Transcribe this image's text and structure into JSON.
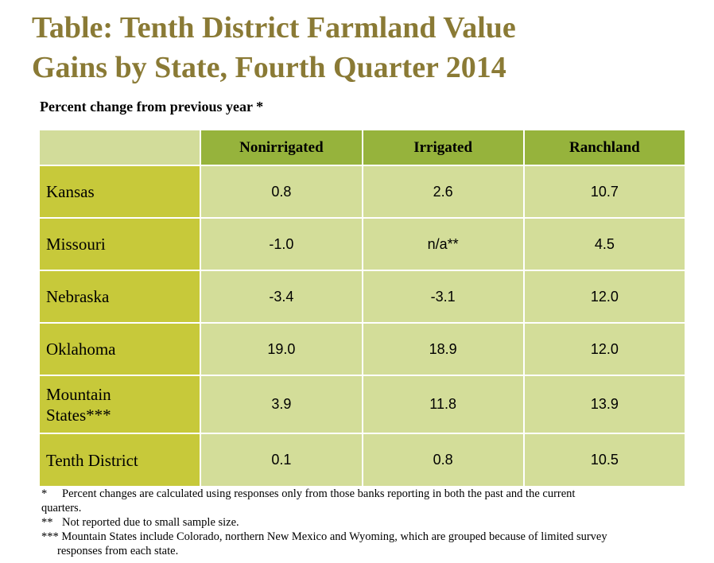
{
  "title": {
    "line1": "Table: Tenth District Farmland Value",
    "line2": "Gains by State, Fourth Quarter 2014"
  },
  "subtitle": "Percent change from previous year *",
  "table": {
    "columns": [
      "Nonirrigated",
      "Irrigated",
      "Ranchland"
    ],
    "rows": [
      {
        "label": "Kansas",
        "label2": "",
        "values": [
          "0.8",
          "2.6",
          "10.7"
        ]
      },
      {
        "label": "Missouri",
        "label2": "",
        "values": [
          "-1.0",
          "n/a**",
          "4.5"
        ]
      },
      {
        "label": "Nebraska",
        "label2": "",
        "values": [
          "-3.4",
          "-3.1",
          "12.0"
        ]
      },
      {
        "label": "Oklahoma",
        "label2": "",
        "values": [
          "19.0",
          "18.9",
          "12.0"
        ]
      },
      {
        "label": "Mountain",
        "label2": "States***",
        "values": [
          "3.9",
          "11.8",
          "13.9"
        ]
      },
      {
        "label": "Tenth District",
        "label2": "",
        "values": [
          "0.1",
          "0.8",
          "10.5"
        ]
      }
    ]
  },
  "notes": {
    "n1_mark": "*",
    "n1_text": "Percent changes are calculated using responses only from those banks reporting in both the past and the current",
    "n1_cont": "quarters.",
    "n2_mark": "**",
    "n2_text": "Not reported due to small sample size.",
    "n3_mark": "***",
    "n3_text": "Mountain States include Colorado, northern New Mexico and Wyoming, which are grouped because of limited survey",
    "n3_cont": "responses from each state."
  },
  "colors": {
    "title": "#8a7a35",
    "header": "#96b33c",
    "row_label": "#c7c93a",
    "cell": "#d3dd99"
  }
}
